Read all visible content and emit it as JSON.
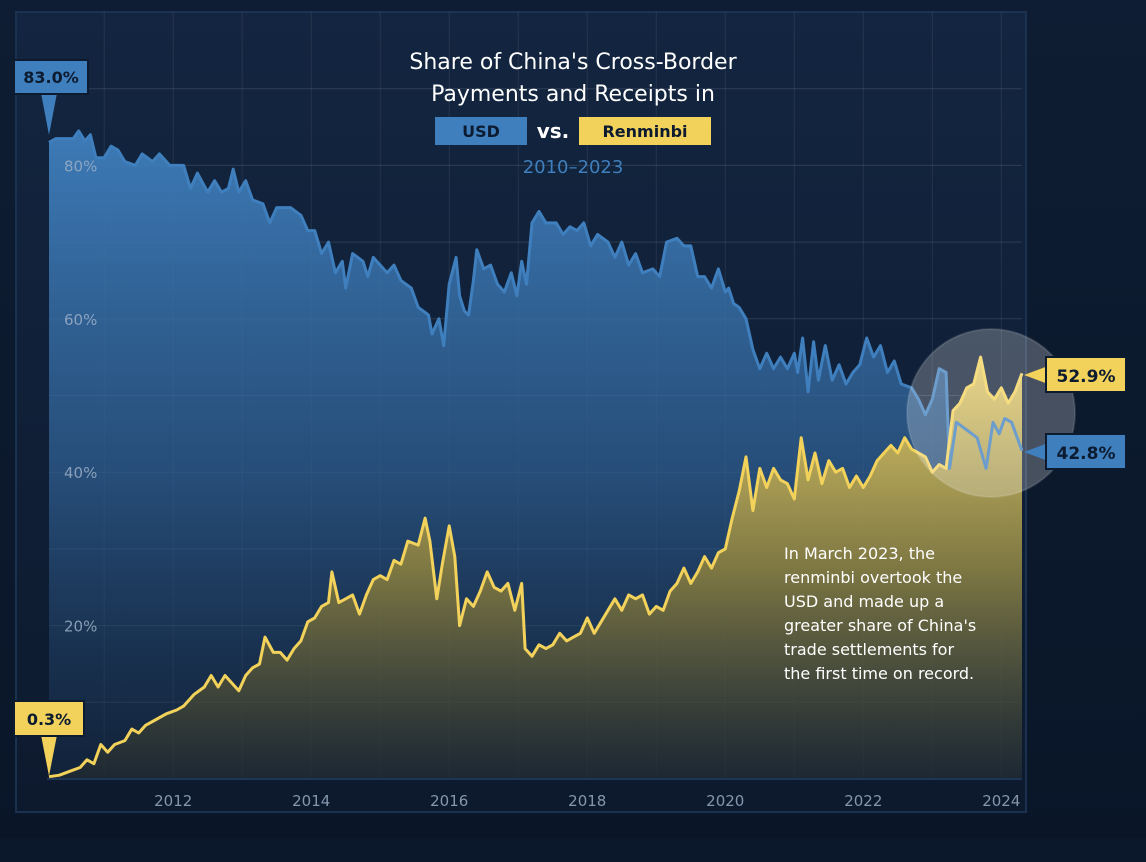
{
  "chart_data": {
    "type": "area",
    "title_lines": [
      "Share of China's Cross-Border",
      "Payments and Receipts in"
    ],
    "legend": {
      "usd_label": "USD",
      "vs_label": "vs.",
      "rmb_label": "Renminbi"
    },
    "subtitle": "2010–2023",
    "xlabel": "",
    "ylabel": "",
    "xlim": [
      2010.2,
      2024.3
    ],
    "ylim": [
      0,
      100
    ],
    "x_ticks": [
      2012,
      2014,
      2016,
      2018,
      2020,
      2022,
      2024
    ],
    "x_tick_labels": [
      "2012",
      "2014",
      "2016",
      "2018",
      "2020",
      "2022",
      "2024"
    ],
    "y_ticks": [
      20,
      40,
      60,
      80
    ],
    "y_tick_labels": [
      "20%",
      "40%",
      "60%",
      "80%"
    ],
    "grid": true,
    "series": [
      {
        "name": "USD",
        "color": "#3f7fbd",
        "points": [
          [
            2010.2,
            83.0
          ],
          [
            2010.3,
            83.5
          ],
          [
            2010.55,
            83.5
          ],
          [
            2010.63,
            84.5
          ],
          [
            2010.72,
            83.2
          ],
          [
            2010.8,
            84.0
          ],
          [
            2010.88,
            81.0
          ],
          [
            2011.0,
            81.0
          ],
          [
            2011.1,
            82.5
          ],
          [
            2011.2,
            82.0
          ],
          [
            2011.3,
            80.5
          ],
          [
            2011.45,
            80.0
          ],
          [
            2011.55,
            81.5
          ],
          [
            2011.7,
            80.5
          ],
          [
            2011.8,
            81.5
          ],
          [
            2011.95,
            80.0
          ],
          [
            2012.15,
            80.0
          ],
          [
            2012.25,
            77.0
          ],
          [
            2012.35,
            79.0
          ],
          [
            2012.5,
            76.5
          ],
          [
            2012.6,
            78.0
          ],
          [
            2012.7,
            76.5
          ],
          [
            2012.8,
            77.0
          ],
          [
            2012.87,
            79.5
          ],
          [
            2012.95,
            76.5
          ],
          [
            2013.05,
            78.0
          ],
          [
            2013.15,
            75.5
          ],
          [
            2013.3,
            75.0
          ],
          [
            2013.4,
            72.5
          ],
          [
            2013.5,
            74.5
          ],
          [
            2013.7,
            74.5
          ],
          [
            2013.85,
            73.5
          ],
          [
            2013.95,
            71.5
          ],
          [
            2014.05,
            71.5
          ],
          [
            2014.15,
            68.5
          ],
          [
            2014.25,
            70.0
          ],
          [
            2014.35,
            66.0
          ],
          [
            2014.45,
            67.5
          ],
          [
            2014.5,
            64.0
          ],
          [
            2014.6,
            68.5
          ],
          [
            2014.75,
            67.5
          ],
          [
            2014.82,
            65.5
          ],
          [
            2014.9,
            68.0
          ],
          [
            2015.0,
            67.0
          ],
          [
            2015.1,
            66.0
          ],
          [
            2015.2,
            67.0
          ],
          [
            2015.3,
            65.0
          ],
          [
            2015.45,
            64.0
          ],
          [
            2015.55,
            61.5
          ],
          [
            2015.7,
            60.5
          ],
          [
            2015.75,
            58.0
          ],
          [
            2015.85,
            60.0
          ],
          [
            2015.92,
            56.5
          ],
          [
            2016.0,
            64.5
          ],
          [
            2016.1,
            68.0
          ],
          [
            2016.15,
            63.0
          ],
          [
            2016.22,
            61.0
          ],
          [
            2016.28,
            60.5
          ],
          [
            2016.35,
            65.0
          ],
          [
            2016.4,
            69.0
          ],
          [
            2016.5,
            66.5
          ],
          [
            2016.6,
            67.0
          ],
          [
            2016.7,
            64.5
          ],
          [
            2016.8,
            63.5
          ],
          [
            2016.9,
            66.0
          ],
          [
            2016.98,
            63.0
          ],
          [
            2017.05,
            67.5
          ],
          [
            2017.12,
            64.5
          ],
          [
            2017.2,
            72.5
          ],
          [
            2017.3,
            74.0
          ],
          [
            2017.4,
            72.5
          ],
          [
            2017.55,
            72.5
          ],
          [
            2017.65,
            71.0
          ],
          [
            2017.75,
            72.0
          ],
          [
            2017.85,
            71.5
          ],
          [
            2017.95,
            72.5
          ],
          [
            2018.05,
            69.5
          ],
          [
            2018.15,
            71.0
          ],
          [
            2018.3,
            70.0
          ],
          [
            2018.4,
            68.0
          ],
          [
            2018.5,
            70.0
          ],
          [
            2018.6,
            67.0
          ],
          [
            2018.7,
            68.5
          ],
          [
            2018.8,
            66.0
          ],
          [
            2018.95,
            66.5
          ],
          [
            2019.05,
            65.5
          ],
          [
            2019.15,
            70.0
          ],
          [
            2019.3,
            70.5
          ],
          [
            2019.4,
            69.5
          ],
          [
            2019.5,
            69.5
          ],
          [
            2019.6,
            65.5
          ],
          [
            2019.7,
            65.5
          ],
          [
            2019.8,
            64.0
          ],
          [
            2019.9,
            66.5
          ],
          [
            2020.0,
            63.5
          ],
          [
            2020.05,
            64.0
          ],
          [
            2020.12,
            62.0
          ],
          [
            2020.2,
            61.5
          ],
          [
            2020.3,
            60.0
          ],
          [
            2020.4,
            56.0
          ],
          [
            2020.5,
            53.5
          ],
          [
            2020.6,
            55.5
          ],
          [
            2020.7,
            53.5
          ],
          [
            2020.8,
            55.0
          ],
          [
            2020.9,
            53.5
          ],
          [
            2021.0,
            55.5
          ],
          [
            2021.05,
            53.0
          ],
          [
            2021.12,
            57.5
          ],
          [
            2021.2,
            50.5
          ],
          [
            2021.28,
            57.0
          ],
          [
            2021.35,
            52.0
          ],
          [
            2021.45,
            56.5
          ],
          [
            2021.55,
            52.0
          ],
          [
            2021.65,
            54.0
          ],
          [
            2021.75,
            51.5
          ],
          [
            2021.85,
            53.0
          ],
          [
            2021.95,
            54.0
          ],
          [
            2022.05,
            57.5
          ],
          [
            2022.15,
            55.0
          ],
          [
            2022.25,
            56.5
          ],
          [
            2022.35,
            53.0
          ],
          [
            2022.45,
            54.5
          ],
          [
            2022.55,
            51.5
          ],
          [
            2022.7,
            51.0
          ],
          [
            2022.8,
            49.5
          ],
          [
            2022.9,
            47.5
          ],
          [
            2023.0,
            49.5
          ],
          [
            2023.1,
            53.5
          ],
          [
            2023.2,
            53.0
          ],
          [
            2023.25,
            40.5
          ],
          [
            2023.35,
            46.5
          ],
          [
            2023.5,
            45.5
          ],
          [
            2023.65,
            44.5
          ],
          [
            2023.78,
            40.5
          ],
          [
            2023.88,
            46.5
          ],
          [
            2023.97,
            45.0
          ],
          [
            2024.05,
            47.0
          ],
          [
            2024.15,
            46.5
          ],
          [
            2024.3,
            42.8
          ]
        ]
      },
      {
        "name": "Renminbi",
        "color": "#f2d25a",
        "points": [
          [
            2010.2,
            0.3
          ],
          [
            2010.35,
            0.5
          ],
          [
            2010.5,
            1.0
          ],
          [
            2010.65,
            1.5
          ],
          [
            2010.75,
            2.5
          ],
          [
            2010.85,
            2.0
          ],
          [
            2010.95,
            4.5
          ],
          [
            2011.05,
            3.5
          ],
          [
            2011.15,
            4.5
          ],
          [
            2011.3,
            5.0
          ],
          [
            2011.4,
            6.5
          ],
          [
            2011.5,
            6.0
          ],
          [
            2011.6,
            7.0
          ],
          [
            2011.7,
            7.5
          ],
          [
            2011.9,
            8.5
          ],
          [
            2012.05,
            9.0
          ],
          [
            2012.15,
            9.5
          ],
          [
            2012.3,
            11.0
          ],
          [
            2012.45,
            12.0
          ],
          [
            2012.55,
            13.5
          ],
          [
            2012.65,
            12.0
          ],
          [
            2012.75,
            13.5
          ],
          [
            2012.85,
            12.5
          ],
          [
            2012.95,
            11.5
          ],
          [
            2013.05,
            13.5
          ],
          [
            2013.15,
            14.5
          ],
          [
            2013.25,
            15.0
          ],
          [
            2013.33,
            18.5
          ],
          [
            2013.45,
            16.5
          ],
          [
            2013.55,
            16.5
          ],
          [
            2013.65,
            15.5
          ],
          [
            2013.75,
            17.0
          ],
          [
            2013.85,
            18.0
          ],
          [
            2013.95,
            20.5
          ],
          [
            2014.05,
            21.0
          ],
          [
            2014.15,
            22.5
          ],
          [
            2014.25,
            23.0
          ],
          [
            2014.3,
            27.0
          ],
          [
            2014.4,
            23.0
          ],
          [
            2014.5,
            23.5
          ],
          [
            2014.6,
            24.0
          ],
          [
            2014.7,
            21.5
          ],
          [
            2014.8,
            24.0
          ],
          [
            2014.9,
            26.0
          ],
          [
            2015.0,
            26.5
          ],
          [
            2015.1,
            26.0
          ],
          [
            2015.2,
            28.5
          ],
          [
            2015.3,
            28.0
          ],
          [
            2015.4,
            31.0
          ],
          [
            2015.55,
            30.5
          ],
          [
            2015.65,
            34.0
          ],
          [
            2015.72,
            31.0
          ],
          [
            2015.82,
            23.5
          ],
          [
            2015.9,
            28.0
          ],
          [
            2016.0,
            33.0
          ],
          [
            2016.08,
            29.0
          ],
          [
            2016.15,
            20.0
          ],
          [
            2016.25,
            23.5
          ],
          [
            2016.35,
            22.5
          ],
          [
            2016.45,
            24.5
          ],
          [
            2016.55,
            27.0
          ],
          [
            2016.65,
            25.0
          ],
          [
            2016.75,
            24.5
          ],
          [
            2016.85,
            25.5
          ],
          [
            2016.95,
            22.0
          ],
          [
            2017.05,
            25.5
          ],
          [
            2017.1,
            17.0
          ],
          [
            2017.2,
            16.0
          ],
          [
            2017.3,
            17.5
          ],
          [
            2017.4,
            17.0
          ],
          [
            2017.5,
            17.5
          ],
          [
            2017.6,
            19.0
          ],
          [
            2017.7,
            18.0
          ],
          [
            2017.8,
            18.5
          ],
          [
            2017.9,
            19.0
          ],
          [
            2018.0,
            21.0
          ],
          [
            2018.1,
            19.0
          ],
          [
            2018.2,
            20.5
          ],
          [
            2018.3,
            22.0
          ],
          [
            2018.4,
            23.5
          ],
          [
            2018.5,
            22.0
          ],
          [
            2018.6,
            24.0
          ],
          [
            2018.7,
            23.5
          ],
          [
            2018.8,
            24.0
          ],
          [
            2018.9,
            21.5
          ],
          [
            2019.0,
            22.5
          ],
          [
            2019.1,
            22.0
          ],
          [
            2019.2,
            24.5
          ],
          [
            2019.3,
            25.5
          ],
          [
            2019.4,
            27.5
          ],
          [
            2019.5,
            25.5
          ],
          [
            2019.6,
            27.0
          ],
          [
            2019.7,
            29.0
          ],
          [
            2019.8,
            27.5
          ],
          [
            2019.9,
            29.5
          ],
          [
            2020.0,
            30.0
          ],
          [
            2020.1,
            34.0
          ],
          [
            2020.2,
            37.5
          ],
          [
            2020.3,
            42.0
          ],
          [
            2020.4,
            35.0
          ],
          [
            2020.5,
            40.5
          ],
          [
            2020.6,
            38.0
          ],
          [
            2020.7,
            40.5
          ],
          [
            2020.8,
            39.0
          ],
          [
            2020.9,
            38.5
          ],
          [
            2021.0,
            36.5
          ],
          [
            2021.1,
            44.5
          ],
          [
            2021.2,
            39.0
          ],
          [
            2021.3,
            42.5
          ],
          [
            2021.4,
            38.5
          ],
          [
            2021.5,
            41.5
          ],
          [
            2021.6,
            40.0
          ],
          [
            2021.7,
            40.5
          ],
          [
            2021.8,
            38.0
          ],
          [
            2021.9,
            39.5
          ],
          [
            2022.0,
            38.0
          ],
          [
            2022.1,
            39.5
          ],
          [
            2022.2,
            41.5
          ],
          [
            2022.3,
            42.5
          ],
          [
            2022.4,
            43.5
          ],
          [
            2022.5,
            42.5
          ],
          [
            2022.6,
            44.5
          ],
          [
            2022.7,
            43.0
          ],
          [
            2022.8,
            42.5
          ],
          [
            2022.9,
            42.0
          ],
          [
            2023.0,
            40.0
          ],
          [
            2023.1,
            41.0
          ],
          [
            2023.2,
            40.5
          ],
          [
            2023.3,
            48.0
          ],
          [
            2023.4,
            49.0
          ],
          [
            2023.5,
            51.0
          ],
          [
            2023.6,
            51.5
          ],
          [
            2023.7,
            55.0
          ],
          [
            2023.8,
            50.5
          ],
          [
            2023.9,
            49.5
          ],
          [
            2024.0,
            51.0
          ],
          [
            2024.1,
            49.0
          ],
          [
            2024.2,
            50.5
          ],
          [
            2024.3,
            52.9
          ]
        ]
      }
    ],
    "end_labels": {
      "usd_start": "83.0%",
      "rmb_start": "0.3%",
      "usd_end": "42.8%",
      "rmb_end": "52.9%"
    },
    "annotation": {
      "lines": [
        "In March 2023, the",
        "renminbi overtook the",
        "USD and made up a",
        "greater share of China's",
        "trade settlements for",
        "the first time on record."
      ]
    }
  }
}
